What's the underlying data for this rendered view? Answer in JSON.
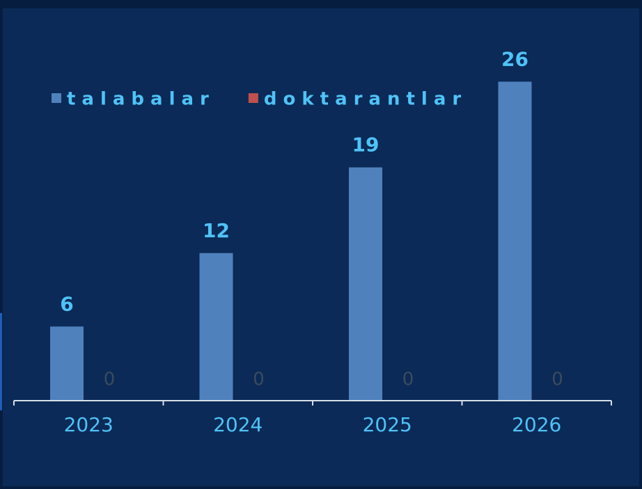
{
  "chart_data": {
    "type": "bar",
    "categories": [
      "2023",
      "2024",
      "2025",
      "2026"
    ],
    "series": [
      {
        "name": "talabalar",
        "color": "#4f81bd",
        "values": [
          6,
          12,
          19,
          26
        ]
      },
      {
        "name": "doktarantlar",
        "color": "#c0504d",
        "values": [
          0,
          0,
          0,
          0
        ]
      }
    ],
    "legend": "top-left"
  }
}
